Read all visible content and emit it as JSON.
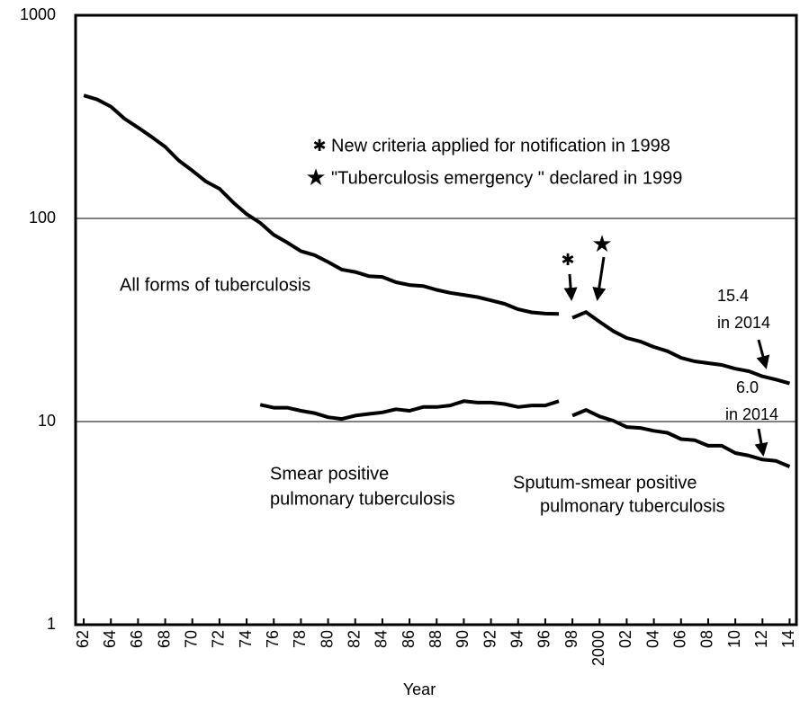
{
  "chart_data": {
    "type": "line",
    "x_label": "Year",
    "log_y": true,
    "grid": true,
    "xlim": [
      1961.4,
      2014.5
    ],
    "ylim": [
      1,
      1000
    ],
    "yticks": [
      1,
      10,
      100,
      1000
    ],
    "xticks": [
      {
        "value": 1962,
        "label": "62"
      },
      {
        "value": 1964,
        "label": "64"
      },
      {
        "value": 1966,
        "label": "66"
      },
      {
        "value": 1968,
        "label": "68"
      },
      {
        "value": 1970,
        "label": "70"
      },
      {
        "value": 1972,
        "label": "72"
      },
      {
        "value": 1974,
        "label": "74"
      },
      {
        "value": 1976,
        "label": "76"
      },
      {
        "value": 1978,
        "label": "78"
      },
      {
        "value": 1980,
        "label": "80"
      },
      {
        "value": 1982,
        "label": "82"
      },
      {
        "value": 1984,
        "label": "84"
      },
      {
        "value": 1986,
        "label": "86"
      },
      {
        "value": 1988,
        "label": "88"
      },
      {
        "value": 1990,
        "label": "90"
      },
      {
        "value": 1992,
        "label": "92"
      },
      {
        "value": 1994,
        "label": "94"
      },
      {
        "value": 1996,
        "label": "96"
      },
      {
        "value": 1998,
        "label": "98"
      },
      2000,
      {
        "value": 2002,
        "label": "02"
      },
      {
        "value": 2004,
        "label": "04"
      },
      {
        "value": 2006,
        "label": "06"
      },
      {
        "value": 2008,
        "label": "08"
      },
      {
        "value": 2010,
        "label": "10"
      },
      {
        "value": 2012,
        "label": "12"
      },
      {
        "value": 2014,
        "label": "14"
      }
    ],
    "series": [
      {
        "label": [
          "All forms of tuberculosis"
        ],
        "color": "#000000",
        "x": [
          1962,
          1963,
          1964,
          1965,
          1966,
          1967,
          1968,
          1969,
          1970,
          1971,
          1972,
          1973,
          1974,
          1975,
          1976,
          1977,
          1978,
          1979,
          1980,
          1981,
          1982,
          1983,
          1984,
          1985,
          1986,
          1987,
          1988,
          1989,
          1990,
          1991,
          1992,
          1993,
          1994,
          1995,
          1996,
          1997
        ],
        "values": [
          403,
          385,
          355,
          310,
          280,
          252,
          225,
          193,
          172,
          152,
          140,
          120,
          105,
          95,
          83,
          76,
          69,
          66,
          61,
          56,
          54.5,
          52,
          51.5,
          48.5,
          47,
          46.5,
          44.5,
          43,
          42,
          41,
          39.5,
          38,
          35.7,
          34.5,
          34,
          33.9
        ]
      },
      {
        "color": "#000000",
        "x": [
          1998,
          1999,
          2000,
          2001,
          2002,
          2003,
          2004,
          2005,
          2006,
          2007,
          2008,
          2009,
          2010,
          2011,
          2012,
          2013,
          2014
        ],
        "values": [
          32.4,
          34.6,
          31.0,
          27.9,
          25.8,
          24.8,
          23.3,
          22.2,
          20.6,
          19.8,
          19.4,
          19.0,
          18.2,
          17.7,
          16.7,
          16.1,
          15.4
        ]
      },
      {
        "label": [
          "Smear positive",
          "pulmonary tuberculosis"
        ],
        "color": "#000000",
        "x": [
          1975,
          1976,
          1977,
          1978,
          1979,
          1980,
          1981,
          1982,
          1983,
          1984,
          1985,
          1986,
          1987,
          1988,
          1989,
          1990,
          1991,
          1992,
          1993,
          1994,
          1995,
          1996,
          1997
        ],
        "values": [
          12.1,
          11.7,
          11.7,
          11.3,
          11.0,
          10.5,
          10.3,
          10.7,
          10.9,
          11.1,
          11.5,
          11.3,
          11.8,
          11.8,
          12.0,
          12.6,
          12.4,
          12.4,
          12.2,
          11.8,
          12.0,
          12.0,
          12.6
        ]
      },
      {
        "label": [
          "Sputum-smear positive",
          "pulmonary tuberculosis"
        ],
        "color": "#000000",
        "x": [
          1998,
          1999,
          2000,
          2001,
          2002,
          2003,
          2004,
          2005,
          2006,
          2007,
          2008,
          2009,
          2010,
          2011,
          2012,
          2013,
          2014
        ],
        "values": [
          10.7,
          11.4,
          10.6,
          10.1,
          9.4,
          9.3,
          9.0,
          8.8,
          8.2,
          8.1,
          7.6,
          7.6,
          7.0,
          6.8,
          6.5,
          6.4,
          6.0
        ]
      }
    ],
    "annotations": [
      "✱",
      "New criteria applied for notification in 1998",
      "★",
      "\"Tuberculosis emergency \" declared in 1999",
      "✱",
      "★",
      "15.4",
      "in 2014",
      "6.0",
      "in 2014"
    ]
  }
}
